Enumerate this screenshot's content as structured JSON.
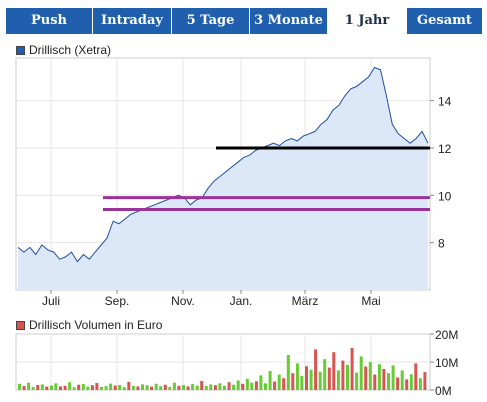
{
  "tabs": [
    {
      "label": "Push",
      "active": false
    },
    {
      "label": "Intraday",
      "active": false
    },
    {
      "label": "5 Tage",
      "active": false
    },
    {
      "label": "3 Monate",
      "active": false
    },
    {
      "label": "1 Jahr",
      "active": true
    },
    {
      "label": "Gesamt",
      "active": false
    }
  ],
  "colors": {
    "tab_bg": "#1f5fae",
    "price_line": "#1f4fa0",
    "price_fill": "#dce8f8",
    "support_line": "#000000",
    "resistance_lines": "#993399",
    "volume_up": "#66cc33",
    "volume_down": "#d9534f"
  },
  "chart_data": [
    {
      "type": "area",
      "legend": "Drillisch (Xetra)",
      "x_tick_labels": [
        "Juli",
        "Sep.",
        "Nov.",
        "Jan.",
        "März",
        "Mai"
      ],
      "y_ticks": [
        8,
        10,
        12,
        14
      ],
      "ylim": [
        6,
        15.8
      ],
      "grid": true,
      "series": [
        {
          "values": [
            7.8,
            7.6,
            7.8,
            7.5,
            7.9,
            7.7,
            7.6,
            7.3,
            7.4,
            7.6,
            7.2,
            7.5,
            7.3,
            7.6,
            7.9,
            8.2,
            8.9,
            8.8,
            9.0,
            9.2,
            9.3,
            9.4,
            9.5,
            9.6,
            9.7,
            9.8,
            9.9,
            10.0,
            9.9,
            9.6,
            9.8,
            9.9,
            10.3,
            10.6,
            10.8,
            11.0,
            11.2,
            11.4,
            11.6,
            11.7,
            11.9,
            12.0,
            12.1,
            12.2,
            12.1,
            12.3,
            12.4,
            12.3,
            12.5,
            12.6,
            12.7,
            13.0,
            13.2,
            13.6,
            13.8,
            14.2,
            14.5,
            14.6,
            14.8,
            15.0,
            15.4,
            15.3,
            14.2,
            13.0,
            12.6,
            12.4,
            12.2,
            12.4,
            12.7,
            12.2
          ]
        }
      ],
      "horizontal_lines": [
        {
          "value": 12.0,
          "color": "#000000"
        },
        {
          "value": 9.9,
          "color": "#993399"
        },
        {
          "value": 9.4,
          "color": "#993399"
        }
      ]
    },
    {
      "type": "bar",
      "legend": "Drillisch Volumen in Euro",
      "y_tick_labels": [
        "20M",
        "10M",
        "0M"
      ],
      "ylim": [
        0,
        20
      ],
      "series": [
        {
          "values": [
            2.2,
            1.4,
            2.6,
            1.1,
            1.8,
            2.0,
            1.2,
            1.6,
            2.4,
            1.3,
            1.5,
            2.8,
            1.0,
            1.9,
            2.1,
            1.2,
            1.7,
            2.5,
            1.1,
            1.4,
            2.3,
            1.6,
            1.8,
            1.0,
            2.9,
            1.5,
            1.3,
            2.0,
            1.7,
            1.2,
            2.2,
            1.4,
            1.9,
            1.1,
            2.6,
            1.5,
            1.8,
            1.3,
            2.1,
            1.6,
            3.2,
            1.4,
            2.0,
            1.7,
            2.4,
            1.5,
            2.8,
            1.9,
            3.4,
            2.2,
            4.0,
            2.6,
            3.1,
            5.2,
            2.4,
            6.8,
            3.0,
            5.5,
            4.2,
            12.5,
            6.0,
            9.5,
            5.0,
            8.5,
            7.2,
            14.5,
            6.5,
            11.0,
            8.0,
            13.5,
            7.0,
            10.5,
            9.0,
            15.0,
            6.2,
            12.0,
            8.4,
            10.0,
            5.5,
            9.2,
            7.5,
            6.0,
            8.8,
            4.5,
            7.0,
            3.8,
            5.6,
            9.5,
            4.2,
            6.4
          ],
          "direction": [
            1,
            0,
            1,
            1,
            0,
            1,
            0,
            1,
            1,
            0,
            0,
            1,
            1,
            0,
            1,
            1,
            0,
            0,
            1,
            1,
            1,
            0,
            1,
            1,
            0,
            1,
            0,
            1,
            1,
            0,
            1,
            1,
            0,
            1,
            1,
            0,
            1,
            0,
            1,
            1,
            0,
            1,
            1,
            0,
            1,
            1,
            0,
            1,
            1,
            0,
            1,
            1,
            0,
            1,
            1,
            1,
            0,
            1,
            0,
            1,
            0,
            1,
            1,
            0,
            1,
            0,
            1,
            1,
            0,
            0,
            1,
            0,
            1,
            0,
            1,
            1,
            0,
            1,
            0,
            1,
            0,
            1,
            1,
            0,
            1,
            0,
            1,
            0,
            1,
            0
          ]
        }
      ]
    }
  ]
}
